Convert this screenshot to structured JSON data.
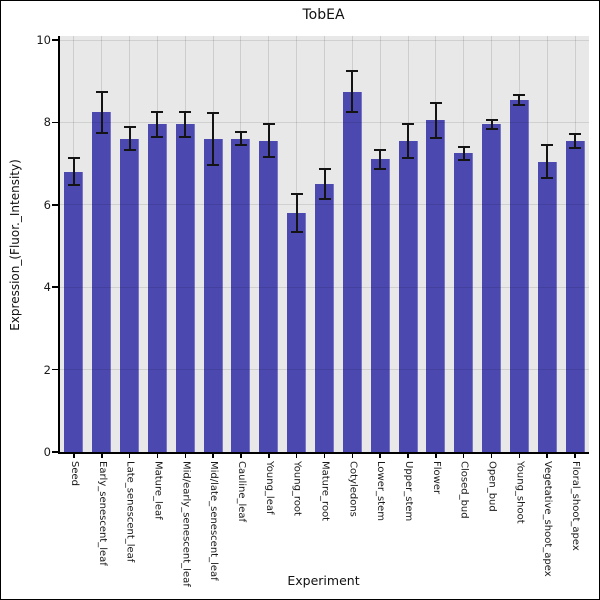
{
  "chart_data": {
    "type": "bar",
    "title": "TobEA",
    "xlabel": "Experiment",
    "ylabel": "Expression_(Fluor._Intensity)",
    "ylim": [
      0,
      10
    ],
    "yticks": [
      0,
      2,
      4,
      6,
      8,
      10
    ],
    "grid": true,
    "legend": false,
    "error_bars": true,
    "categories": [
      "Seed",
      "Early_senescent_leaf",
      "Late_senescent_leaf",
      "Mature_leaf",
      "Mid/early_senescent_leaf",
      "Mid/late_senescent_leaf",
      "Cauline_leaf",
      "Young_leaf",
      "Young_root",
      "Mature_root",
      "Cotyledons",
      "Lower_stem",
      "Upper_stem",
      "Flower",
      "Closed_bud",
      "Open_bud",
      "Young_shoot",
      "Vegetative_shoot_apex",
      "Floral_shoot_apex"
    ],
    "values": [
      6.8,
      8.25,
      7.6,
      7.95,
      7.95,
      7.6,
      7.6,
      7.55,
      5.8,
      6.5,
      8.75,
      7.1,
      7.55,
      8.05,
      7.25,
      7.95,
      8.55,
      7.05,
      7.55
    ],
    "errors": [
      0.33,
      0.5,
      0.28,
      0.3,
      0.3,
      0.63,
      0.16,
      0.4,
      0.46,
      0.36,
      0.5,
      0.24,
      0.42,
      0.43,
      0.16,
      0.1,
      0.12,
      0.4,
      0.17
    ],
    "colors": {
      "bar": "#4B48B0",
      "plot_bg": "#E8E8E8",
      "grid_vertical": "#CDCDCD",
      "axis": "#000000",
      "error_bar": "#141414"
    }
  }
}
